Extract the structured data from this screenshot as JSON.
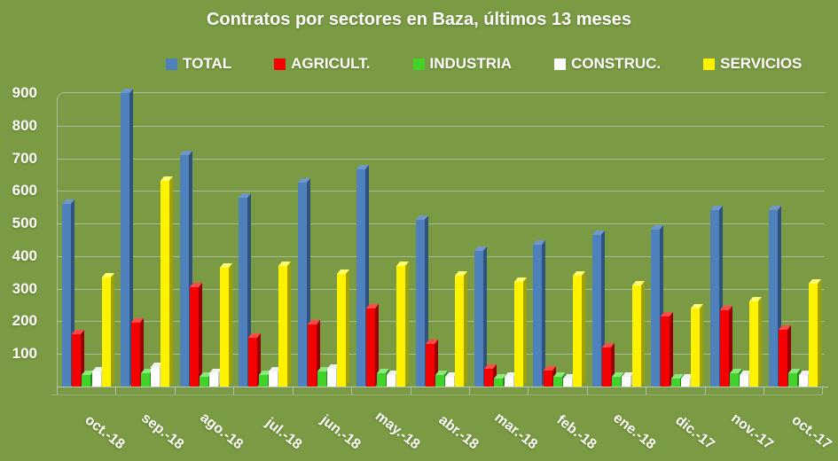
{
  "title": "Contratos por sectores en Baza, últimos 13 meses",
  "colors": {
    "background": "#7a9a43",
    "text": "#ffffff",
    "gridline": "#cdd4e0"
  },
  "chart_data": {
    "type": "bar",
    "style": "3d-clustered-column",
    "title": "Contratos por sectores en Baza, últimos 13 meses",
    "categories": [
      "oct.-18",
      "sep.-18",
      "ago.-18",
      "jul.-18",
      "jun.-18",
      "may.-18",
      "abr.-18",
      "mar.-18",
      "feb.-18",
      "ene.-18",
      "dic.-17",
      "nov.-17",
      "oct.-17"
    ],
    "series": [
      {
        "name": "TOTAL",
        "color": "#4f81bd",
        "side": "#2f527e",
        "top": "#6f97c9",
        "values": [
          560,
          900,
          710,
          580,
          625,
          665,
          510,
          415,
          435,
          465,
          480,
          540,
          540
        ]
      },
      {
        "name": "AGRICULT.",
        "color": "#f40000",
        "side": "#960000",
        "top": "#ff4a4a",
        "values": [
          160,
          195,
          305,
          150,
          190,
          240,
          130,
          55,
          50,
          120,
          215,
          235,
          175
        ]
      },
      {
        "name": "INDUSTRIA",
        "color": "#41d32a",
        "side": "#27891a",
        "top": "#8cea7c",
        "values": [
          35,
          40,
          30,
          35,
          45,
          40,
          35,
          25,
          30,
          30,
          25,
          40,
          40
        ]
      },
      {
        "name": "CONSTRUC.",
        "color": "#fdfdfd",
        "side": "#bfc4c2",
        "top": "#f0f2f0",
        "values": [
          45,
          60,
          40,
          45,
          55,
          35,
          30,
          30,
          25,
          30,
          25,
          35,
          35
        ]
      },
      {
        "name": "SERVICIOS",
        "color": "#fff200",
        "side": "#a0a000",
        "top": "#ffff70",
        "values": [
          335,
          630,
          365,
          370,
          345,
          370,
          340,
          320,
          340,
          310,
          240,
          260,
          315
        ]
      }
    ],
    "xlabel": "",
    "ylabel": "",
    "ylim": [
      0,
      900
    ],
    "ytick_step": 100,
    "grid": true,
    "legend_position": "top"
  }
}
